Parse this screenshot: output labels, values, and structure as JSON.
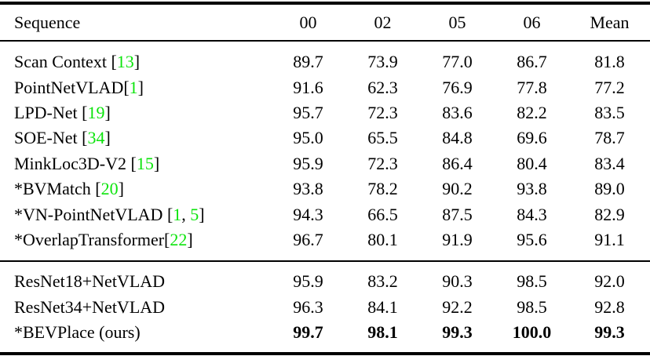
{
  "colors": {
    "citation_green": "#0be40b",
    "text": "#000000",
    "rule": "#000000",
    "background": "#ffffff"
  },
  "table": {
    "columns": [
      "Sequence",
      "00",
      "02",
      "05",
      "06",
      "Mean"
    ],
    "groups": [
      {
        "rows": [
          {
            "method": "Scan Context ",
            "cites": [
              "13"
            ],
            "values": [
              "89.7",
              "73.9",
              "77.0",
              "86.7",
              "81.8"
            ],
            "bold_values": false
          },
          {
            "method": "PointNetVLAD",
            "cites": [
              "1"
            ],
            "values": [
              "91.6",
              "62.3",
              "76.9",
              "77.8",
              "77.2"
            ],
            "bold_values": false
          },
          {
            "method": "LPD-Net ",
            "cites": [
              "19"
            ],
            "values": [
              "95.7",
              "72.3",
              "83.6",
              "82.2",
              "83.5"
            ],
            "bold_values": false
          },
          {
            "method": "SOE-Net ",
            "cites": [
              "34"
            ],
            "values": [
              "95.0",
              "65.5",
              "84.8",
              "69.6",
              "78.7"
            ],
            "bold_values": false
          },
          {
            "method": "MinkLoc3D-V2 ",
            "cites": [
              "15"
            ],
            "values": [
              "95.9",
              "72.3",
              "86.4",
              "80.4",
              "83.4"
            ],
            "bold_values": false
          },
          {
            "method": "*BVMatch ",
            "cites": [
              "20"
            ],
            "values": [
              "93.8",
              "78.2",
              "90.2",
              "93.8",
              "89.0"
            ],
            "bold_values": false
          },
          {
            "method": "*VN-PointNetVLAD ",
            "cites": [
              "1",
              "5"
            ],
            "values": [
              "94.3",
              "66.5",
              "87.5",
              "84.3",
              "82.9"
            ],
            "bold_values": false
          },
          {
            "method": "*OverlapTransformer",
            "cites": [
              "22"
            ],
            "values": [
              "96.7",
              "80.1",
              "91.9",
              "95.6",
              "91.1"
            ],
            "bold_values": false
          }
        ]
      },
      {
        "rows": [
          {
            "method": "ResNet18+NetVLAD",
            "cites": [],
            "values": [
              "95.9",
              "83.2",
              "90.3",
              "98.5",
              "92.0"
            ],
            "bold_values": false
          },
          {
            "method": "ResNet34+NetVLAD",
            "cites": [],
            "values": [
              "96.3",
              "84.1",
              "92.2",
              "98.5",
              "92.8"
            ],
            "bold_values": false
          },
          {
            "method": "*BEVPlace (ours)",
            "cites": [],
            "values": [
              "99.7",
              "98.1",
              "99.3",
              "100.0",
              "99.3"
            ],
            "bold_values": true
          }
        ]
      }
    ]
  }
}
